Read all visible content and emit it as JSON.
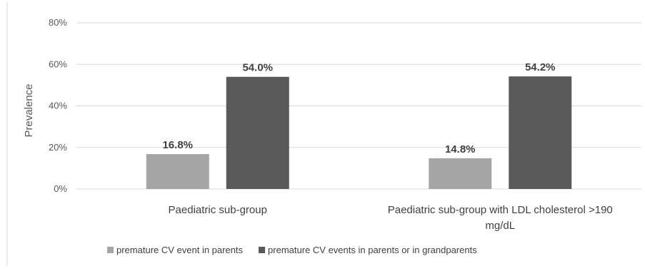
{
  "chart_data": {
    "type": "bar",
    "ylabel": "Prevalence",
    "ylim": [
      0,
      80
    ],
    "yticks": [
      "0%",
      "20%",
      "40%",
      "60%",
      "80%"
    ],
    "ytick_values": [
      0,
      20,
      40,
      60,
      80
    ],
    "categories": [
      [
        "Paediatric sub-group"
      ],
      [
        "Paediatric sub-group with LDL cholesterol >190",
        "mg/dL"
      ]
    ],
    "series": [
      {
        "name": "premature CV event in parents",
        "color": "#a5a5a5",
        "values": [
          16.8,
          14.8
        ],
        "labels": [
          "16.8%",
          "14.8%"
        ]
      },
      {
        "name": "premature CV events in parents or in grandparents",
        "color": "#595959",
        "values": [
          54.0,
          54.2
        ],
        "labels": [
          "54.0%",
          "54.2%"
        ]
      }
    ],
    "grid": true,
    "legend_position": "bottom"
  }
}
